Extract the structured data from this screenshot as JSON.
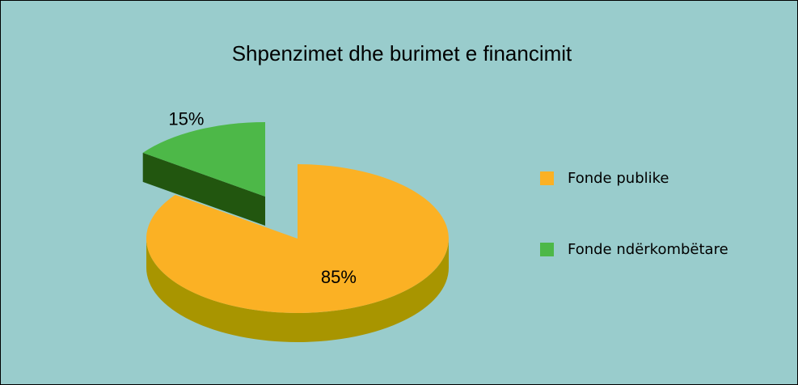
{
  "chart_data": {
    "type": "pie3d",
    "title": "Shpenzimet dhe burimet e financimit",
    "categories": [
      "Fonde publike",
      "Fonde ndërkombëtare"
    ],
    "values": [
      85,
      15
    ],
    "value_labels": [
      "85%",
      "15%"
    ],
    "colors": [
      "#fbb124",
      "#4db848"
    ],
    "side_colors": [
      "#a89500",
      "#22560f"
    ],
    "legend": "right"
  }
}
